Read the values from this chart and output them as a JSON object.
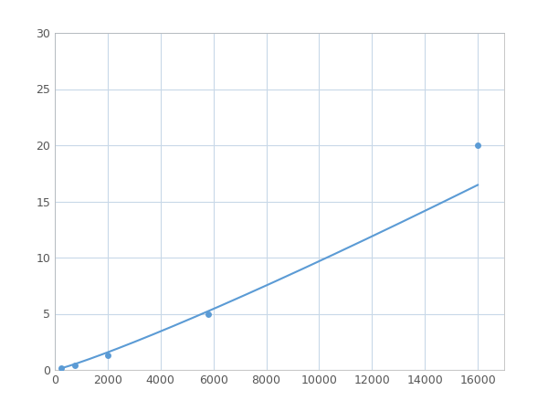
{
  "x": [
    250,
    750,
    2000,
    5800,
    16000
  ],
  "y": [
    0.2,
    0.4,
    1.3,
    5.0,
    20.0
  ],
  "line_color": "#5b9bd5",
  "marker_color": "#5b9bd5",
  "marker_size": 5,
  "line_width": 1.5,
  "xlim": [
    0,
    17000
  ],
  "ylim": [
    0,
    30
  ],
  "xticks": [
    0,
    2000,
    4000,
    6000,
    8000,
    10000,
    12000,
    14000,
    16000
  ],
  "yticks": [
    0,
    5,
    10,
    15,
    20,
    25,
    30
  ],
  "grid_color": "#c8d8e8",
  "background_color": "#ffffff",
  "spine_color": "#b0b0b0",
  "figure_size": [
    6.0,
    4.5
  ],
  "dpi": 100
}
